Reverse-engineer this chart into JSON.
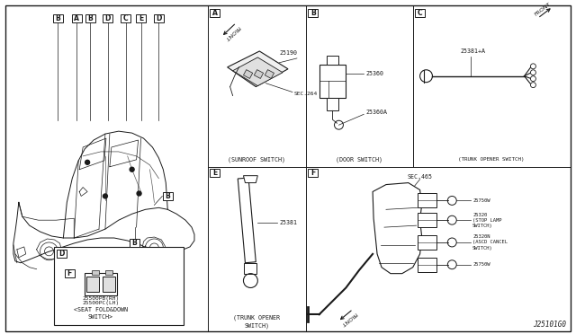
{
  "diagram_id": "J25101G0",
  "bg_color": "#f5f5f0",
  "line_color": "#1a1a1a",
  "text_color": "#1a1a1a",
  "sections": {
    "A_caption": "(SUNROOF SWITCH)",
    "B_caption": "(DOOR SWITCH)",
    "C_caption": "(TRUNK OPENER SWITCH)",
    "D_caption": "<SEAT FOLD&DOWN\nSWITCH>",
    "E_caption": "(TRUNK OPENER\nSWITCH)",
    "F_parts": [
      "SEC.465",
      "25750W",
      "25320",
      "(STOP LAMP",
      "SWITCH)",
      "25320N",
      "(ASCD CANCEL",
      "SWITCH)",
      "25750W"
    ]
  },
  "part_numbers": {
    "A": [
      "25190",
      "SEC.264"
    ],
    "B": [
      "25360",
      "25360A"
    ],
    "C": [
      "25381+A"
    ],
    "D": [
      "25500PB(RH)",
      "25500PC(LH)"
    ],
    "E": [
      "25381"
    ]
  }
}
